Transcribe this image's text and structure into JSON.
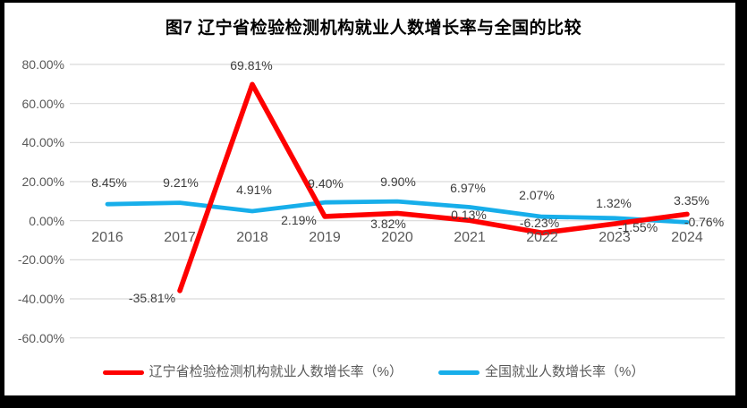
{
  "chart_data": {
    "type": "line",
    "title": "图7 辽宁省检验检测机构就业人数增长率与全国的比较",
    "categories": [
      "2016",
      "2017",
      "2018",
      "2019",
      "2020",
      "2021",
      "2022",
      "2023",
      "2024"
    ],
    "series": [
      {
        "name": "辽宁省检验检测机构就业人数增长率（%）",
        "color": "#fe0000",
        "values": [
          null,
          -35.81,
          69.81,
          2.19,
          3.82,
          0.13,
          -6.23,
          -1.55,
          3.35
        ],
        "labels": [
          "",
          "-35.81%",
          "69.81%",
          "2.19%",
          "3.82%",
          "0.13%",
          "-6.23%",
          "-1.55%",
          "3.35%"
        ],
        "label_offsets": [
          [
            0,
            0
          ],
          [
            -31,
            8
          ],
          [
            -1,
            -21
          ],
          [
            -29,
            4
          ],
          [
            -10,
            12
          ],
          [
            -1,
            -6
          ],
          [
            -3,
            -11
          ],
          [
            26,
            4
          ],
          [
            5,
            -15
          ]
        ]
      },
      {
        "name": "全国就业人数增长率（%）",
        "color": "#17aeea",
        "values": [
          8.45,
          9.21,
          4.91,
          9.4,
          9.9,
          6.97,
          2.07,
          1.32,
          -0.76
        ],
        "labels": [
          "8.45%",
          "9.21%",
          "4.91%",
          "9.40%",
          "9.90%",
          "6.97%",
          "2.07%",
          "1.32%",
          "-0.76%"
        ],
        "label_offsets": [
          [
            2,
            -24
          ],
          [
            1,
            -23
          ],
          [
            2,
            -24
          ],
          [
            1,
            -21
          ],
          [
            1,
            -22
          ],
          [
            -2,
            -21
          ],
          [
            -6,
            -24
          ],
          [
            -1,
            -17
          ],
          [
            19,
            0
          ]
        ]
      }
    ],
    "y_axis": {
      "min": -60,
      "max": 80,
      "ticks": [
        {
          "value": 80,
          "label": "80.00%"
        },
        {
          "value": 60,
          "label": "60.00%"
        },
        {
          "value": 40,
          "label": "40.00%"
        },
        {
          "value": 20,
          "label": "20.00%"
        },
        {
          "value": 0,
          "label": "0.00%"
        },
        {
          "value": -20,
          "label": "-20.00%"
        },
        {
          "value": -40,
          "label": "-40.00%"
        },
        {
          "value": -60,
          "label": "-60.00%"
        }
      ]
    },
    "grid": true,
    "legend_position": "bottom",
    "grid_color": "#d9d9d9",
    "axis_text_color": "#595959"
  }
}
